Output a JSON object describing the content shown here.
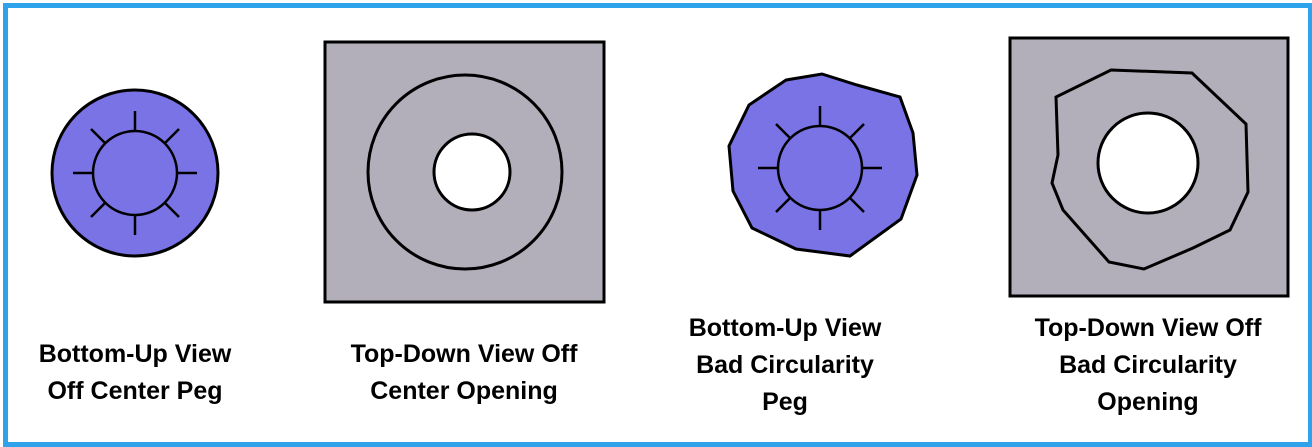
{
  "panels": [
    {
      "id": "off-center-peg",
      "caption": [
        "Bottom-Up View",
        "Off Center Peg"
      ]
    },
    {
      "id": "off-center-opening",
      "caption": [
        "Top-Down View Off",
        "Center Opening"
      ]
    },
    {
      "id": "bad-circularity-peg",
      "caption": [
        "Bottom-Up View",
        "Bad Circularity",
        "Peg"
      ]
    },
    {
      "id": "bad-circularity-opening",
      "caption": [
        "Top-Down View Off",
        "Bad Circularity",
        "Opening"
      ]
    }
  ],
  "colors": {
    "border": "#2ea3ec",
    "peg_fill": "#7a73e6",
    "plate_fill": "#b2afbb",
    "hole_fill": "#ffffff",
    "stroke": "#000000"
  }
}
